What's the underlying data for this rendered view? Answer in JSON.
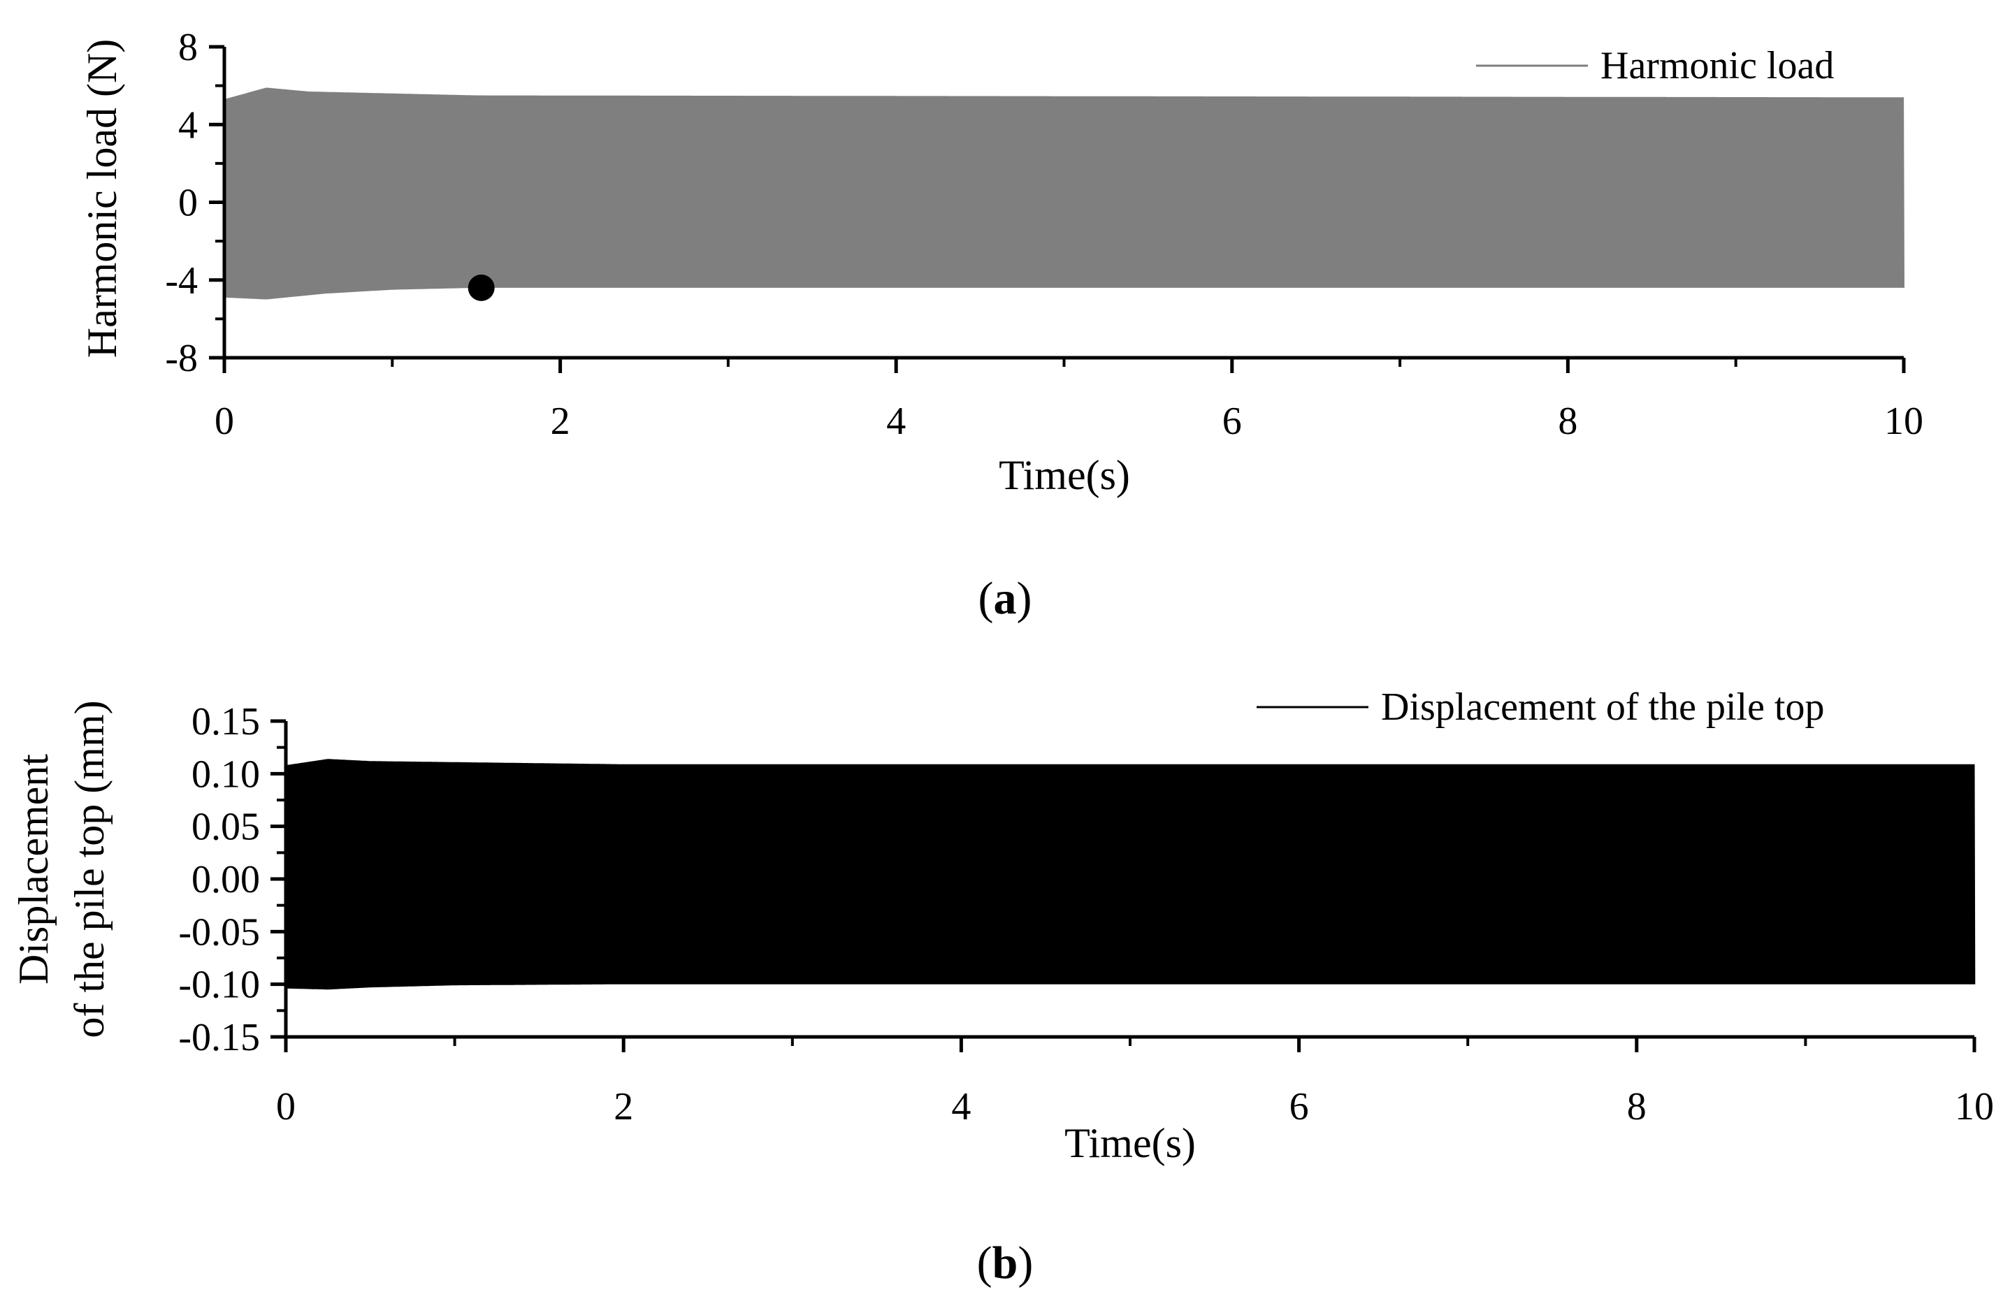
{
  "chart_data": [
    {
      "type": "line",
      "panel_label": "a",
      "xlabel": "Time(s)",
      "ylabel": "Harmonic load (N)",
      "xlim": [
        0,
        10
      ],
      "ylim": [
        -8,
        8
      ],
      "x_ticks": [
        "0",
        "2",
        "4",
        "6",
        "8",
        "10"
      ],
      "y_ticks": [
        "8",
        "4",
        "0",
        "-4",
        "-8"
      ],
      "x_tick_values": [
        0,
        2,
        4,
        6,
        8,
        10
      ],
      "y_tick_values": [
        8,
        4,
        0,
        -4,
        -8
      ],
      "legend": "top-right",
      "series": [
        {
          "name": "Harmonic load",
          "color": "#7f7f7f",
          "signal": "oscillation",
          "x_range": [
            0,
            10
          ],
          "envelope_max": [
            [
              0,
              5.3
            ],
            [
              0.25,
              5.9
            ],
            [
              0.5,
              5.7
            ],
            [
              1.0,
              5.6
            ],
            [
              1.5,
              5.5
            ],
            [
              10,
              5.4
            ]
          ],
          "envelope_min": [
            [
              0,
              -4.9
            ],
            [
              0.25,
              -5.0
            ],
            [
              0.6,
              -4.7
            ],
            [
              1.0,
              -4.5
            ],
            [
              1.5,
              -4.4
            ],
            [
              10,
              -4.4
            ]
          ]
        }
      ],
      "annotations": [
        {
          "kind": "marker",
          "x": 1.53,
          "y": -4.4
        }
      ]
    },
    {
      "type": "line",
      "panel_label": "b",
      "xlabel": "Time(s)",
      "ylabel_lines": [
        "Displacement",
        "of the pile top (mm)"
      ],
      "xlim": [
        0,
        10
      ],
      "ylim": [
        -0.15,
        0.15
      ],
      "x_ticks": [
        "0",
        "2",
        "4",
        "6",
        "8",
        "10"
      ],
      "y_ticks": [
        "0.15",
        "0.10",
        "0.05",
        "0.00",
        "-0.05",
        "-0.10",
        "-0.15"
      ],
      "x_tick_values": [
        0,
        2,
        4,
        6,
        8,
        10
      ],
      "y_tick_values": [
        0.15,
        0.1,
        0.05,
        0.0,
        -0.05,
        -0.1,
        -0.15
      ],
      "legend": "top-right",
      "series": [
        {
          "name": "Displacement of the pile top",
          "color": "#000000",
          "signal": "oscillation",
          "x_range": [
            0,
            10
          ],
          "envelope_max": [
            [
              0,
              0.108
            ],
            [
              0.25,
              0.114
            ],
            [
              0.5,
              0.112
            ],
            [
              1.0,
              0.111
            ],
            [
              2.0,
              0.109
            ],
            [
              10,
              0.109
            ]
          ],
          "envelope_min": [
            [
              0,
              -0.104
            ],
            [
              0.25,
              -0.105
            ],
            [
              0.5,
              -0.103
            ],
            [
              1.0,
              -0.101
            ],
            [
              2.0,
              -0.1
            ],
            [
              10,
              -0.1
            ]
          ]
        }
      ]
    }
  ]
}
